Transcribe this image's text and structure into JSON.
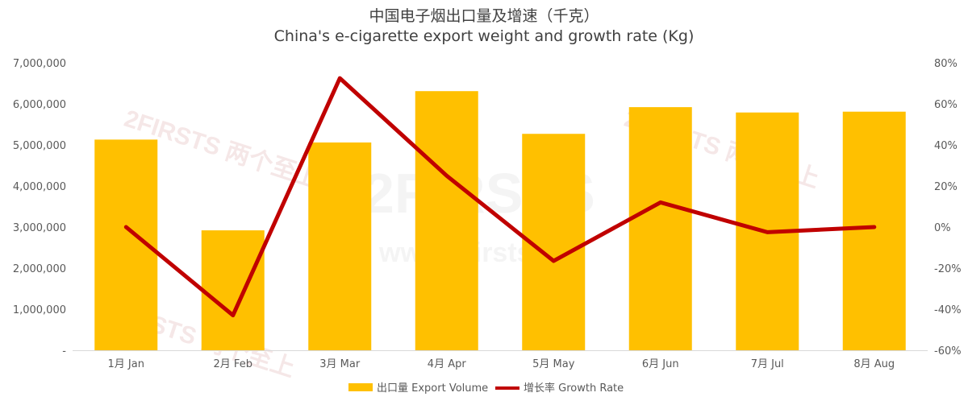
{
  "title": "中国电子烟出口量及增速（千克）",
  "subtitle": "China's e-cigarette export weight and growth rate (Kg)",
  "watermark": {
    "brand_text": "2FIRSTS 两个至上",
    "center_text": "2FIRSTS",
    "center_url": "www.2firsts.cn"
  },
  "colors": {
    "bar": "#FFC000",
    "line": "#C00000",
    "axis": "#595959",
    "grid": "#D9D9D9"
  },
  "chart_data": {
    "type": "bar",
    "title": "中国电子烟出口量及增速（千克）",
    "subtitle": "China's e-cigarette export weight and growth rate (Kg)",
    "categories": [
      "1月 Jan",
      "2月 Feb",
      "3月 Mar",
      "4月 Apr",
      "5月 May",
      "6月 Jun",
      "7月 Jul",
      "8月 Aug"
    ],
    "series": [
      {
        "name": "出口量 Export Volume",
        "type": "bar",
        "axis": "left",
        "values": [
          5130000,
          2920000,
          5060000,
          6310000,
          5270000,
          5920000,
          5790000,
          5810000
        ]
      },
      {
        "name": "增长率 Growth Rate",
        "type": "line",
        "axis": "right",
        "values": [
          0.0,
          -43.0,
          72.5,
          25.0,
          -16.5,
          12.0,
          -2.5,
          0.0
        ]
      }
    ],
    "ylim": [
      0,
      7000000
    ],
    "y2lim": [
      -60,
      80
    ],
    "y_ticks": [
      "-",
      "1,000,000",
      "2,000,000",
      "3,000,000",
      "4,000,000",
      "5,000,000",
      "6,000,000",
      "7,000,000"
    ],
    "y2_ticks": [
      "-60%",
      "-40%",
      "-20%",
      "0%",
      "20%",
      "40%",
      "60%",
      "80%"
    ],
    "grid": false,
    "legend": "bottom"
  }
}
